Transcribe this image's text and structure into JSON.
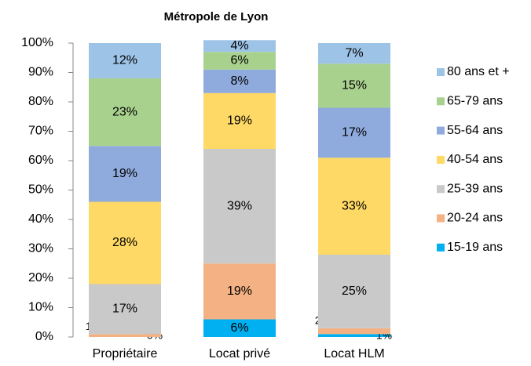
{
  "chart_data": {
    "type": "stacked_bar",
    "title": "Métropole de Lyon",
    "categories": [
      "Propriétaire",
      "Locat privé",
      "Locat HLM"
    ],
    "series": [
      {
        "name": "15-19 ans",
        "color": "#00b0f0",
        "values": [
          0,
          6,
          1
        ],
        "value_labels": [
          "0%",
          "6%",
          "1%"
        ]
      },
      {
        "name": "20-24 ans",
        "color": "#f4b183",
        "values": [
          1,
          19,
          2
        ],
        "value_labels": [
          "1%",
          "19%",
          "2%"
        ]
      },
      {
        "name": "25-39 ans",
        "color": "#c9c9c9",
        "values": [
          17,
          39,
          25
        ],
        "value_labels": [
          "17%",
          "39%",
          "25%"
        ]
      },
      {
        "name": "40-54 ans",
        "color": "#ffd966",
        "values": [
          28,
          19,
          33
        ],
        "value_labels": [
          "28%",
          "19%",
          "33%"
        ]
      },
      {
        "name": "55-64 ans",
        "color": "#8faadc",
        "values": [
          19,
          8,
          17
        ],
        "value_labels": [
          "19%",
          "8%",
          "17%"
        ]
      },
      {
        "name": "65-79 ans",
        "color": "#a9d18e",
        "values": [
          23,
          6,
          15
        ],
        "value_labels": [
          "23%",
          "6%",
          "15%"
        ]
      },
      {
        "name": "80 ans et +",
        "color": "#9dc3e6",
        "values": [
          12,
          4,
          7
        ],
        "value_labels": [
          "12%",
          "4%",
          "7%"
        ]
      }
    ],
    "ylim": [
      0,
      100
    ],
    "yticks": [
      {
        "value": 0,
        "label": "0%"
      },
      {
        "value": 10,
        "label": "10%"
      },
      {
        "value": 20,
        "label": "20%"
      },
      {
        "value": 30,
        "label": "30%"
      },
      {
        "value": 40,
        "label": "40%"
      },
      {
        "value": 50,
        "label": "50%"
      },
      {
        "value": 60,
        "label": "60%"
      },
      {
        "value": 70,
        "label": "70%"
      },
      {
        "value": 80,
        "label": "80%"
      },
      {
        "value": 90,
        "label": "90%"
      },
      {
        "value": 100,
        "label": "100%"
      }
    ],
    "legend": "right"
  }
}
